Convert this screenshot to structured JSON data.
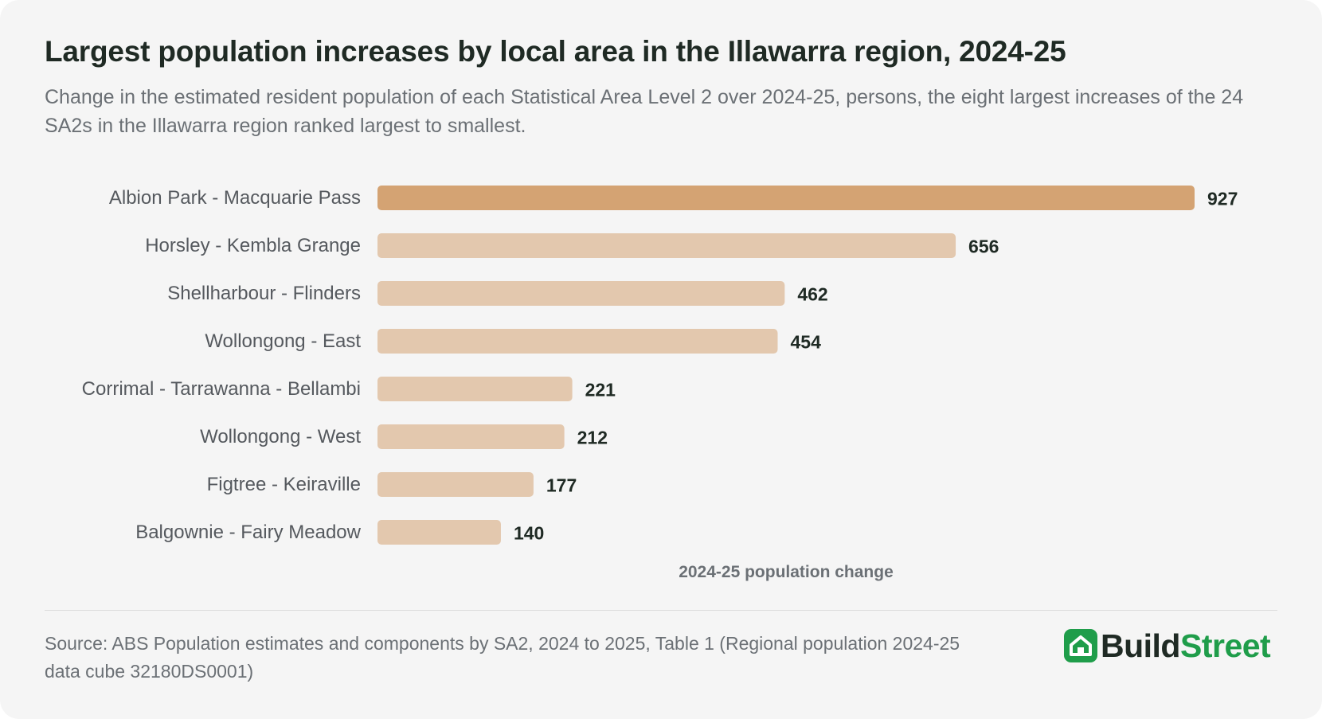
{
  "title": "Largest population increases by local area in the Illawarra region, 2024-25",
  "subtitle": "Change in the estimated resident population of each Statistical Area Level 2 over 2024-25, persons, the eight largest increases of the 24 SA2s in the Illawarra region ranked largest to smallest.",
  "source": "Source: ABS Population estimates and components by SA2, 2024 to 2025, Table 1 (Regional population 2024-25 data cube 32180DS0001)",
  "logo": {
    "part1": "Build",
    "part2": "Street",
    "icon": "house-icon"
  },
  "colors": {
    "highlight_bar": "#d4a373",
    "bar": "#e3c8ae",
    "brand_green": "#1f9d4a",
    "background": "#f5f5f5"
  },
  "chart_data": {
    "type": "bar",
    "orientation": "horizontal",
    "categories": [
      "Albion Park - Macquarie Pass",
      "Horsley - Kembla Grange",
      "Shellharbour - Flinders",
      "Wollongong - East",
      "Corrimal - Tarrawanna - Bellambi",
      "Wollongong - West",
      "Figtree - Keiraville",
      "Balgownie - Fairy Meadow"
    ],
    "values": [
      927,
      656,
      462,
      454,
      221,
      212,
      177,
      140
    ],
    "highlighted_index": 0,
    "xlabel": "2024-25 population change",
    "ylabel": "",
    "xlim": [
      0,
      927
    ],
    "grid": false,
    "data_labels": true
  }
}
